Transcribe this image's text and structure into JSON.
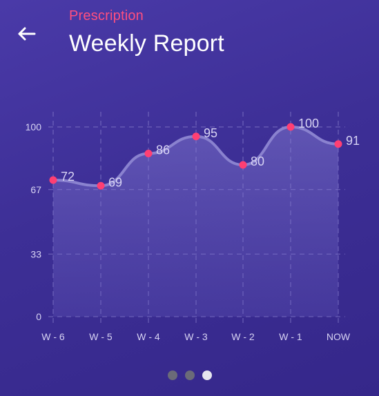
{
  "header": {
    "subtitle": "Prescription",
    "title": "Weekly Report"
  },
  "colors": {
    "accent": "#ff4f7f",
    "point": "#ff3f73",
    "line": "#8a82cf",
    "grid": "#8f86d0",
    "label": "#d8d4f4",
    "dot_inactive": "#6b6b78",
    "dot_active": "#e6e6ee"
  },
  "icons": {
    "back": "arrow-left-icon"
  },
  "pagination": {
    "count": 3,
    "active_index": 2
  },
  "chart_data": {
    "type": "area",
    "categories": [
      "W - 6",
      "W - 5",
      "W - 4",
      "W - 3",
      "W - 2",
      "W - 1",
      "NOW"
    ],
    "values": [
      72,
      69,
      86,
      95,
      80,
      100,
      91
    ],
    "y_ticks": [
      "100",
      "67",
      "33",
      "0"
    ],
    "ylim": [
      0,
      100
    ],
    "grid": "dashed"
  }
}
